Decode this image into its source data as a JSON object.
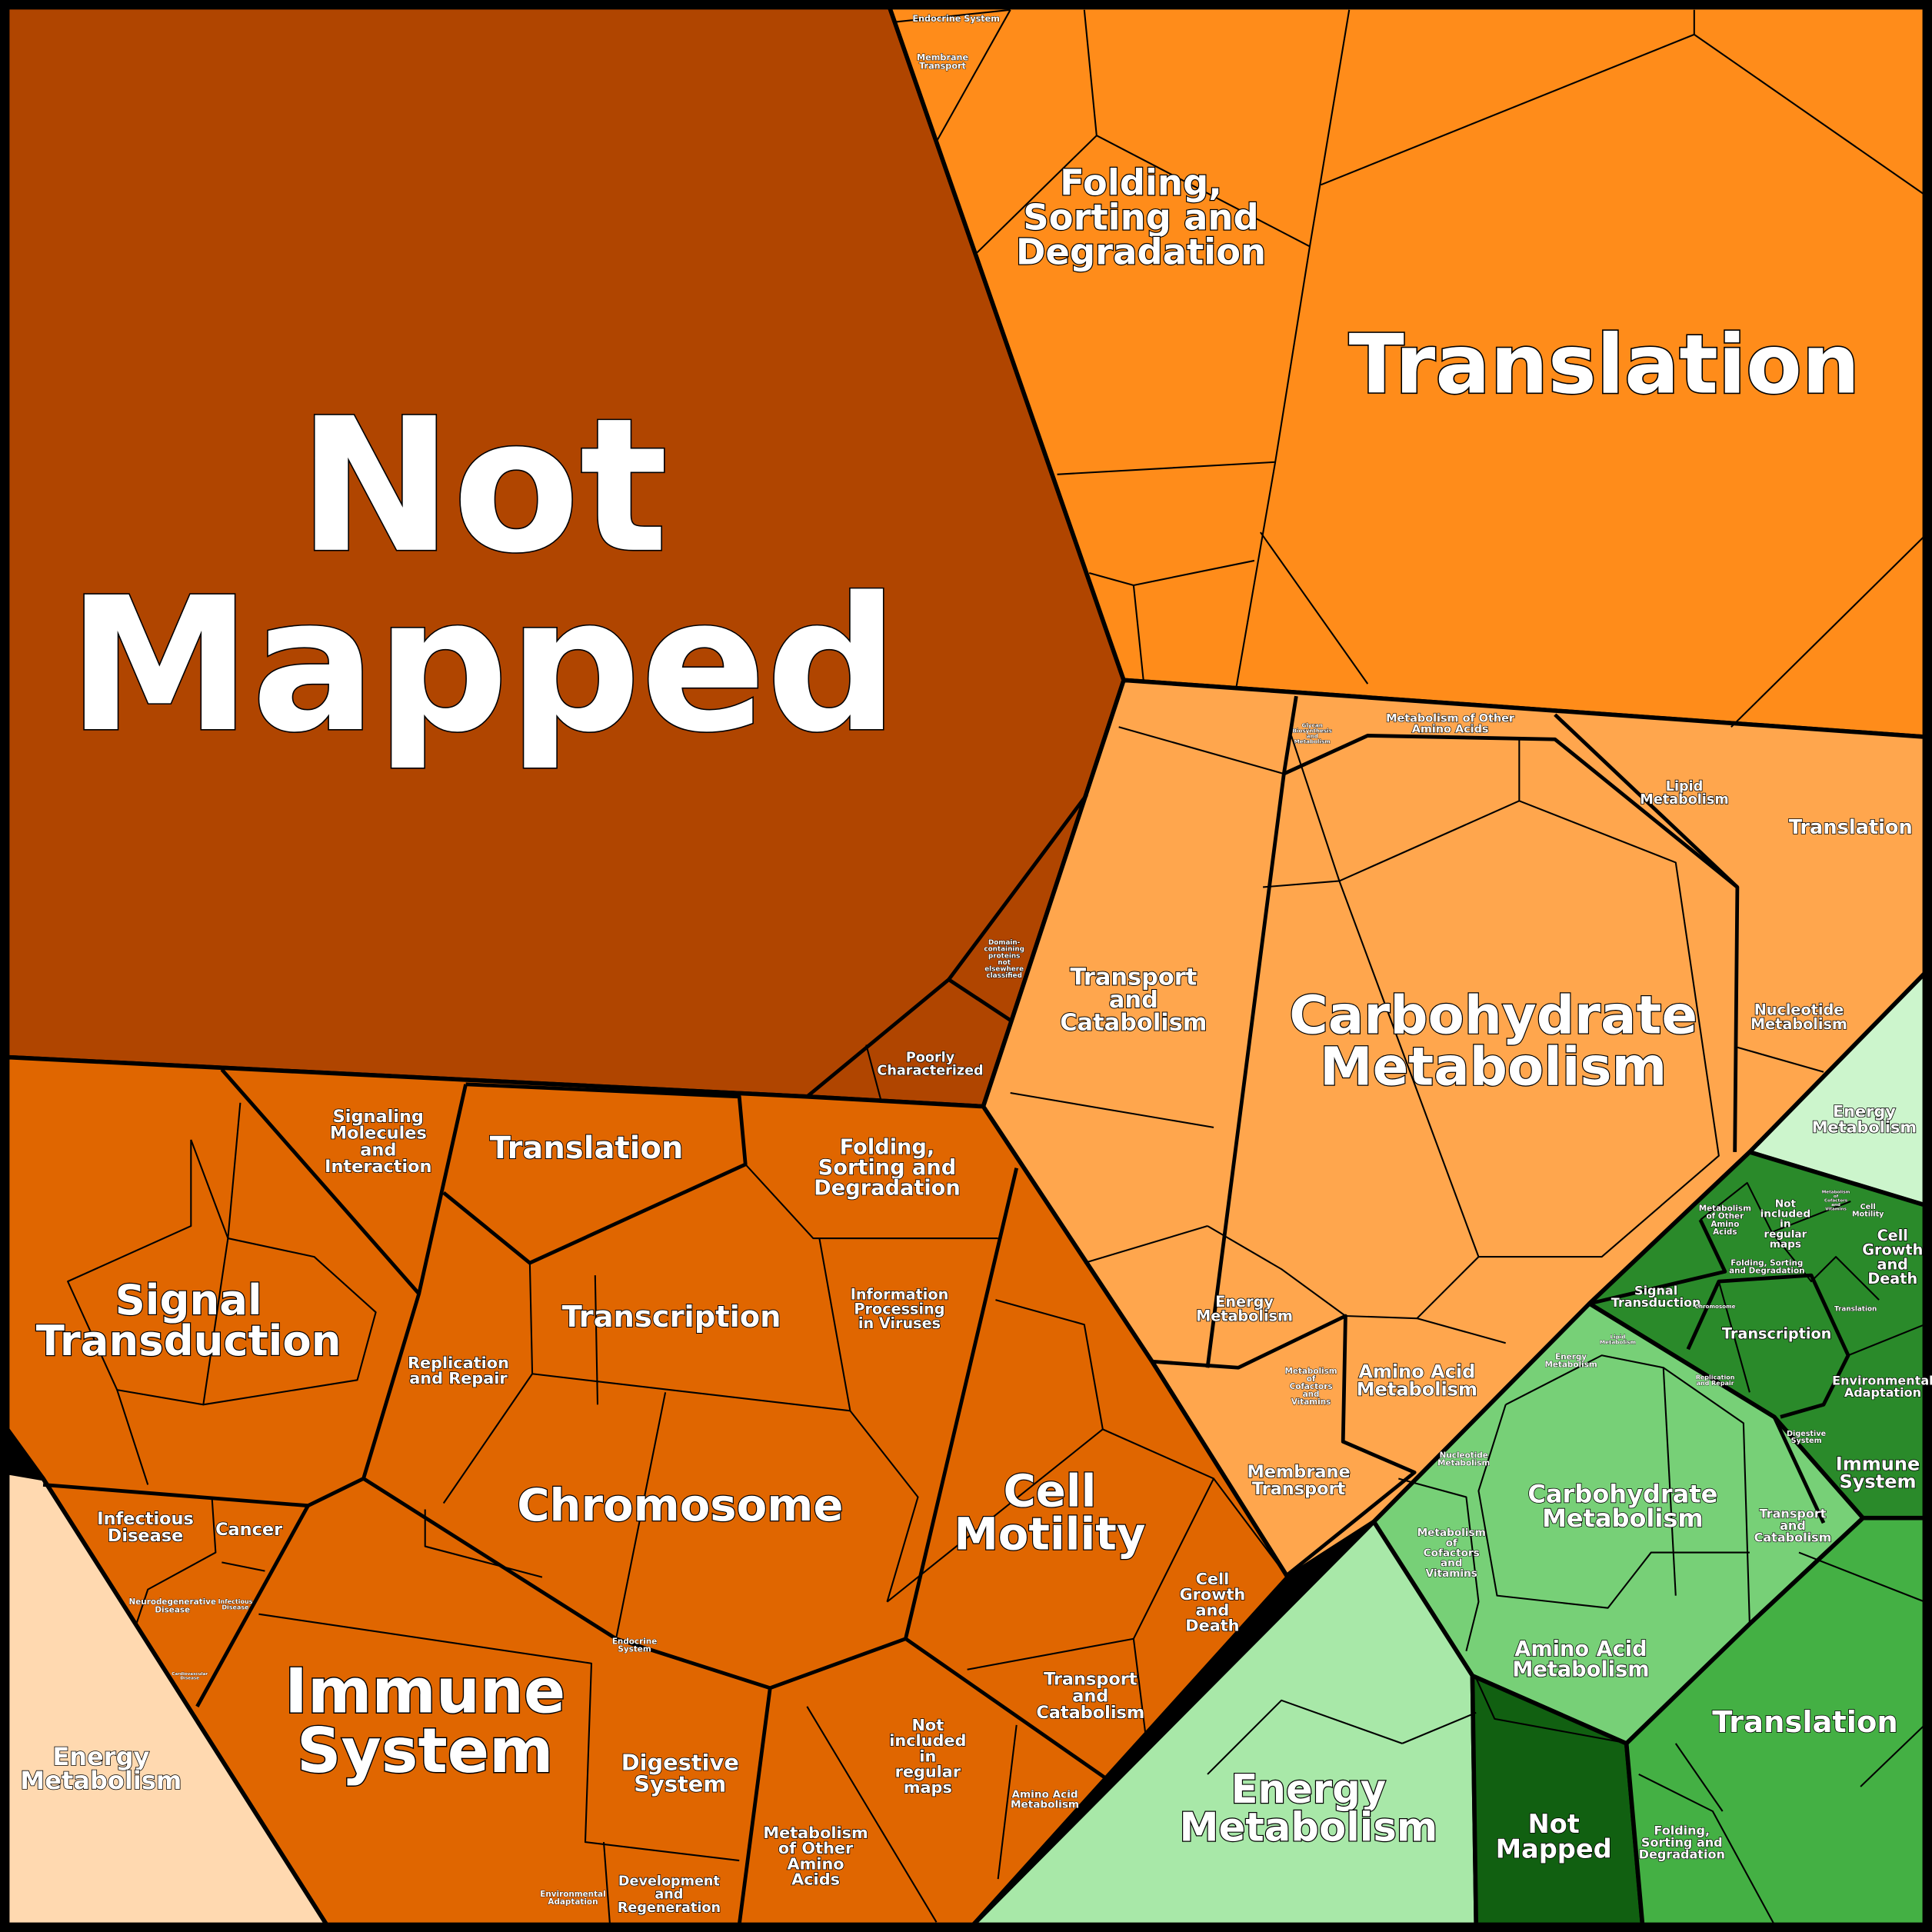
{
  "colors": {
    "not_mapped_top": "#b04500",
    "translation_top": "#ff8c1a",
    "metabolism_orange": "#ffa64d",
    "dark_orange": "#e06600",
    "peach": "#ffd9b0",
    "pale_green": "#ccf5cc",
    "dark_green": "#2a8a2a",
    "medium_green": "#77d077",
    "light_green": "#a8e8a8",
    "darkest_green": "#116011",
    "green": "#44b044",
    "text": "#ffffff",
    "outline": "#000000"
  },
  "labels": {
    "not_mapped": "Not\nMapped",
    "domain_containing": "Domain-\ncontaining\nproteins\nnot\nelsewhere\nclassified",
    "poorly_characterized": "Poorly\nCharacterized",
    "translation_top": "Translation",
    "folding_top": "Folding,\nSorting and\nDegradation",
    "endocrine_top": "Endocrine System",
    "membrane_top": "Membrane\nTransport",
    "o_transport": "Transport\nand\nCatabolism",
    "o_carbohydrate": "Carbohydrate\nMetabolism",
    "o_other_amino": "Metabolism of Other\nAmino Acids",
    "o_glycan": "Glycan\nBiosynthesis\nand\nMetabolism",
    "o_lipid": "Lipid\nMetabolism",
    "o_translation": "Translation",
    "o_nucleotide": "Nucleotide\nMetabolism",
    "o_energy": "Energy\nMetabolism",
    "o_amino": "Amino Acid\nMetabolism",
    "o_cofactors": "Metabolism\nof\nCofactors\nand\nVitamins",
    "o_membrane": "Membrane\nTransport",
    "pale_energy": "Energy\nMetabolism",
    "dg_not_included": "Not\nincluded\nin\nregular\nmaps",
    "dg_other_amino": "Metabolism\nof Other\nAmino\nAcids",
    "dg_cofactors": "Metabolism\nof\nCofactors\nand\nVitamins",
    "dg_cell_motility": "Cell\nMotility",
    "dg_cell_growth": "Cell\nGrowth\nand\nDeath",
    "dg_signal": "Signal\nTransduction",
    "dg_folding": "Folding, Sorting\nand Degradation",
    "dg_chromosome": "Chromosome",
    "dg_transcription": "Transcription",
    "dg_translation": "Translation",
    "dg_replication": "Replication\nand Repair",
    "dg_environmental": "Environmental\nAdaptation",
    "dg_digestive": "Digestive\nSystem",
    "dg_immune": "Immune\nSystem",
    "mg_energy": "Energy\nMetabolism",
    "mg_lipid": "Lipid\nMetabolism",
    "mg_nucleotide": "Nucleotide\nMetabolism",
    "mg_carbohydrate": "Carbohydrate\nMetabolism",
    "mg_cofactors": "Metabolism\nof\nCofactors\nand\nVitamins",
    "mg_amino": "Amino Acid\nMetabolism",
    "mg_transport": "Transport\nand\nCatabolism",
    "lg_energy": "Energy\nMetabolism",
    "g_not_mapped": "Not\nMapped",
    "g_translation": "Translation",
    "g_folding": "Folding,\nSorting and\nDegradation",
    "do_signaling": "Signaling\nMolecules\nand\nInteraction",
    "do_signal": "Signal\nTransduction",
    "do_translation": "Translation",
    "do_folding": "Folding,\nSorting and\nDegradation",
    "do_transcription": "Transcription",
    "do_viruses": "Information\nProcessing\nin Viruses",
    "do_replication": "Replication\nand Repair",
    "do_chromosome": "Chromosome",
    "do_cell_motility": "Cell\nMotility",
    "do_infectious": "Infectious\nDisease",
    "do_cancer": "Cancer",
    "do_neuro": "Neurodegenerative\nDisease",
    "do_infectious2": "Infectious\nDisease",
    "do_cardio": "Cardiovascular\nDisease",
    "do_immune": "Immune\nSystem",
    "do_endocrine": "Endocrine\nSystem",
    "do_digestive": "Digestive\nSystem",
    "do_cell_growth": "Cell\nGrowth\nand\nDeath",
    "do_transport": "Transport\nand\nCatabolism",
    "do_not_included": "Not\nincluded\nin\nregular\nmaps",
    "do_amino": "Amino Acid\nMetabolism",
    "do_other_amino": "Metabolism\nof Other\nAmino\nAcids",
    "do_development": "Development\nand\nRegeneration",
    "do_environmental": "Environmental\nAdaptation",
    "peach_energy": "Energy\nMetabolism"
  }
}
